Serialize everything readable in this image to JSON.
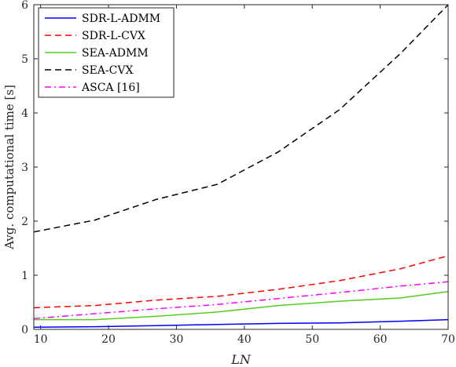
{
  "chart_data": {
    "type": "line",
    "title": "",
    "xlabel": "LN",
    "ylabel": "Avg. computational time [s]",
    "xlim": [
      9,
      70
    ],
    "ylim": [
      0,
      6
    ],
    "xticks": [
      10,
      20,
      30,
      40,
      50,
      60,
      70
    ],
    "yticks": [
      0,
      1,
      2,
      3,
      4,
      5,
      6
    ],
    "legend_position": "top-left",
    "grid": false,
    "series": [
      {
        "name": "SDR-L-ADMM",
        "color": "#0000ff",
        "dash": "solid",
        "x": [
          9,
          18,
          27,
          36,
          45,
          54,
          63,
          70
        ],
        "y": [
          0.04,
          0.05,
          0.07,
          0.09,
          0.11,
          0.12,
          0.15,
          0.18
        ]
      },
      {
        "name": "SDR-L-CVX",
        "color": "#ff0000",
        "dash": "dashed",
        "x": [
          9,
          18,
          27,
          36,
          45,
          54,
          63,
          70
        ],
        "y": [
          0.4,
          0.44,
          0.54,
          0.61,
          0.74,
          0.9,
          1.12,
          1.36
        ]
      },
      {
        "name": "SEA-ADMM",
        "color": "#55cc22",
        "dash": "solid",
        "x": [
          9,
          18,
          27,
          36,
          45,
          54,
          63,
          70
        ],
        "y": [
          0.18,
          0.18,
          0.24,
          0.32,
          0.44,
          0.52,
          0.58,
          0.7
        ]
      },
      {
        "name": "SEA-CVX",
        "color": "#000000",
        "dash": "dashed",
        "x": [
          9,
          18,
          27,
          36,
          45,
          54,
          63,
          70
        ],
        "y": [
          1.8,
          2.02,
          2.4,
          2.68,
          3.28,
          4.06,
          5.1,
          6.0
        ]
      },
      {
        "name": "ASCA [16]",
        "color": "#ff00ff",
        "dash": "dashdot",
        "x": [
          9,
          18,
          27,
          36,
          45,
          54,
          63,
          70
        ],
        "y": [
          0.2,
          0.29,
          0.38,
          0.46,
          0.57,
          0.68,
          0.8,
          0.88
        ]
      }
    ]
  }
}
